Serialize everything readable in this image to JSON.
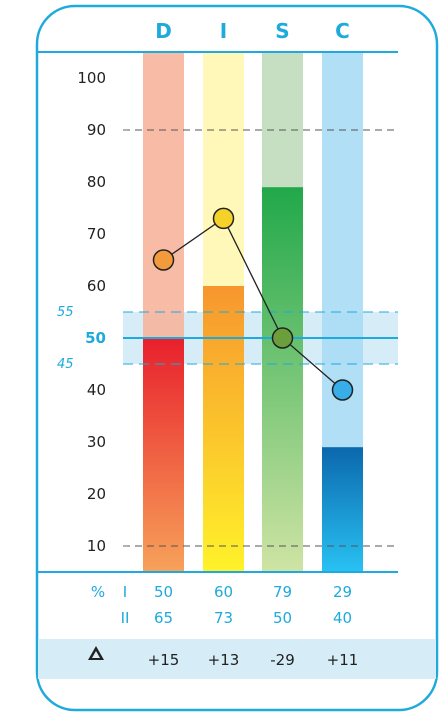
{
  "chart_data": {
    "type": "bar",
    "categories": [
      "D",
      "I",
      "S",
      "C"
    ],
    "ylim": [
      5,
      105
    ],
    "y_ticks": [
      10,
      20,
      30,
      40,
      50,
      60,
      70,
      80,
      90,
      100
    ],
    "band": {
      "low": 45,
      "mid": 50,
      "high": 55,
      "low_label": "45",
      "mid_label": "50",
      "high_label": "55"
    },
    "dashed_lines": [
      90,
      10
    ],
    "series": [
      {
        "key": "I",
        "values": [
          50,
          60,
          79,
          29
        ]
      },
      {
        "key": "II",
        "values": [
          65,
          73,
          50,
          40
        ]
      }
    ],
    "point_colors": [
      "#f39a3c",
      "#f5d22a",
      "#6a9f3c",
      "#38aee8"
    ],
    "colors": {
      "D": {
        "bg": "#f6b49c",
        "top": "#e8202c",
        "bottom": "#f7a25a"
      },
      "I": {
        "bg": "#fff7b0",
        "top": "#f7962e",
        "bottom": "#fff22a"
      },
      "S": {
        "bg": "#c0dcbc",
        "top": "#21a84a",
        "bottom": "#cfe4a4"
      },
      "C": {
        "bg": "#a9dcf4",
        "top": "#0b68ac",
        "bottom": "#29c2f2"
      },
      "accent": "#1eaadc",
      "band": "#d6edf8"
    }
  },
  "table": {
    "percent_label": "%",
    "row_labels": [
      "I",
      "II"
    ],
    "rows": [
      [
        "50",
        "60",
        "79",
        "29"
      ],
      [
        "65",
        "73",
        "50",
        "40"
      ]
    ]
  },
  "delta": {
    "icon": "triangle-delta-icon",
    "values": [
      "+15",
      "+13",
      "-29",
      "+11"
    ]
  }
}
